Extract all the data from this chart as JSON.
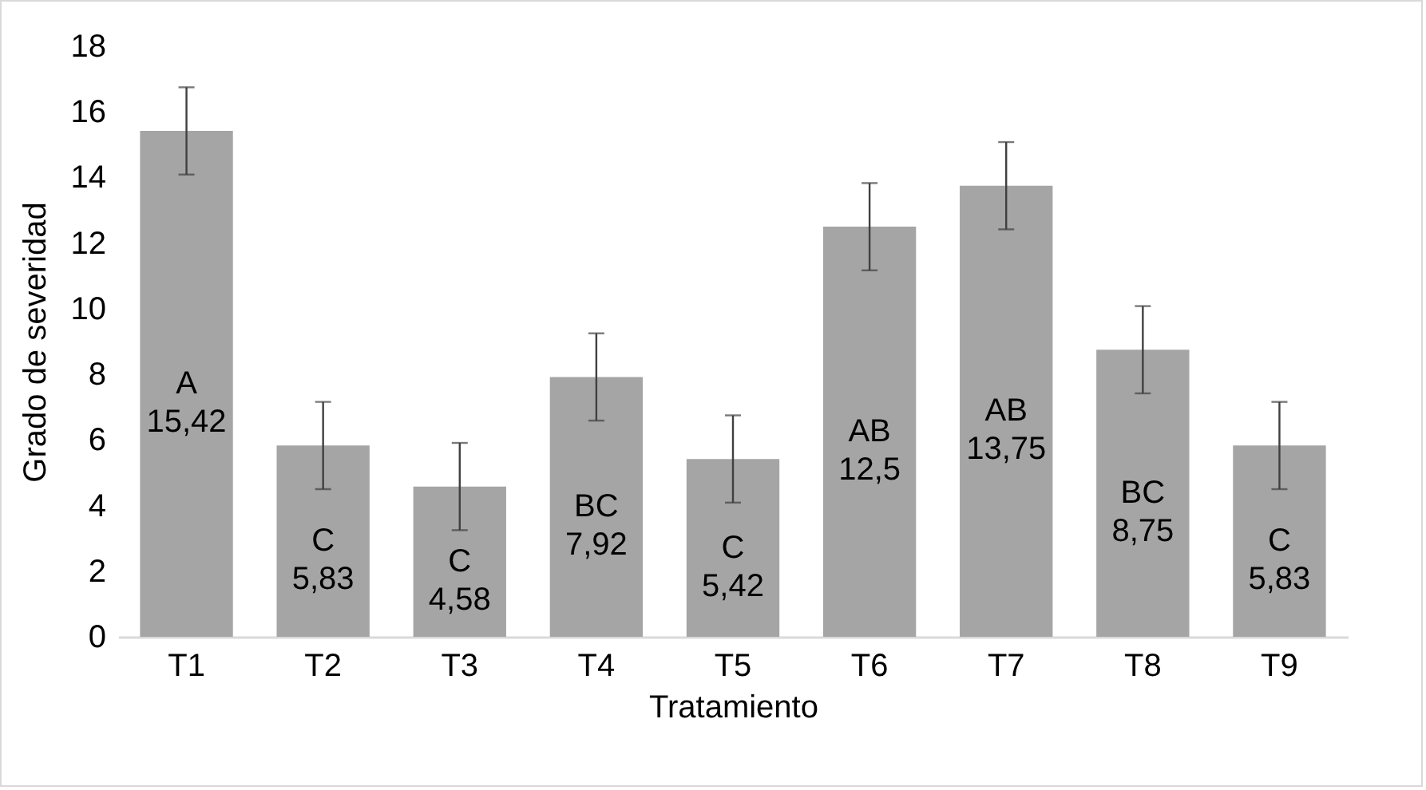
{
  "chart_data": {
    "type": "bar",
    "xlabel": "Tratamiento",
    "ylabel": "Grado de severidad",
    "categories": [
      "T1",
      "T2",
      "T3",
      "T4",
      "T5",
      "T6",
      "T7",
      "T8",
      "T9"
    ],
    "values": [
      15.42,
      5.83,
      4.58,
      7.92,
      5.42,
      12.5,
      13.75,
      8.75,
      5.83
    ],
    "errors": [
      1.33,
      1.33,
      1.33,
      1.33,
      1.33,
      1.33,
      1.33,
      1.33,
      1.33
    ],
    "value_labels": [
      "15,42",
      "5,83",
      "4,58",
      "7,92",
      "5,42",
      "12,5",
      "13,75",
      "8,75",
      "5,83"
    ],
    "annotations": [
      "A",
      "C",
      "C",
      "BC",
      "C",
      "AB",
      "AB",
      "BC",
      "C"
    ],
    "color": "#a5a5a5",
    "ylim": [
      0,
      18
    ],
    "yticks": [
      0,
      2,
      4,
      6,
      8,
      10,
      12,
      14,
      16,
      18
    ],
    "grid": false
  }
}
